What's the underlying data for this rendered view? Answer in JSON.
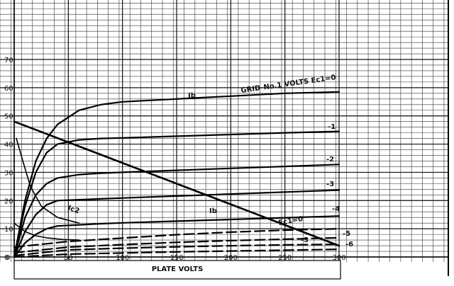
{
  "chart_data": {
    "type": "line",
    "xlabel": "PLATE VOLTS",
    "ylabel": "",
    "xlim": [
      0,
      300
    ],
    "ylim": [
      0,
      70
    ],
    "x_ticks": [
      0,
      50,
      100,
      150,
      200,
      250,
      300
    ],
    "y_ticks": [
      0,
      10,
      20,
      30,
      40,
      50,
      60,
      70
    ],
    "grid": true,
    "annotations": {
      "grid_header": "GRID-No.1 VOLTS Ec1=0",
      "ib_label": "Ib",
      "ic2_label": "Ic2",
      "ec1_lower": "Ec1=0"
    },
    "series": [
      {
        "name": "0",
        "x": [
          0,
          10,
          20,
          30,
          40,
          60,
          80,
          100,
          150,
          200,
          250,
          300
        ],
        "y": [
          0,
          20,
          34,
          42,
          47,
          52,
          54,
          55,
          56,
          57,
          58,
          58.5
        ]
      },
      {
        "name": "-1",
        "x": [
          0,
          10,
          20,
          30,
          40,
          60,
          80,
          100,
          150,
          200,
          250,
          300
        ],
        "y": [
          0,
          18,
          30,
          37,
          40,
          41.5,
          42,
          42.2,
          42.8,
          43.4,
          44,
          44.5
        ]
      },
      {
        "name": "-2",
        "x": [
          0,
          10,
          20,
          30,
          40,
          60,
          80,
          100,
          150,
          200,
          250,
          300
        ],
        "y": [
          0,
          14,
          22,
          26,
          28,
          29.2,
          29.7,
          30,
          30.7,
          31.4,
          32.1,
          32.8
        ]
      },
      {
        "name": "-3",
        "x": [
          0,
          10,
          20,
          30,
          40,
          60,
          80,
          100,
          150,
          200,
          250,
          300
        ],
        "y": [
          0,
          9,
          15,
          18.5,
          20,
          20.3,
          20.6,
          20.9,
          21.6,
          22.3,
          23,
          23.7
        ]
      },
      {
        "name": "-4",
        "x": [
          0,
          10,
          20,
          30,
          40,
          60,
          80,
          100,
          150,
          200,
          250,
          300
        ],
        "y": [
          0,
          5,
          8,
          10,
          11,
          11.4,
          11.8,
          12.1,
          12.7,
          13.3,
          13.9,
          14.5
        ]
      },
      {
        "name": "Ec1=0",
        "x": [
          0,
          50,
          100,
          150,
          200,
          250,
          300
        ],
        "y": [
          3.5,
          5.5,
          6.7,
          7.9,
          8.8,
          9.5,
          10
        ]
      },
      {
        "name": "-5",
        "x": [
          0,
          50,
          100,
          150,
          200,
          250,
          300
        ],
        "y": [
          1.5,
          3.5,
          4.4,
          5.2,
          5.8,
          6.3,
          6.8
        ]
      },
      {
        "name": "-3",
        "x": [
          0,
          50,
          100,
          150,
          200,
          250,
          300
        ],
        "y": [
          0.5,
          2.5,
          3.1,
          3.6,
          4,
          4.3,
          4.5
        ]
      },
      {
        "name": "-6",
        "x": [
          0,
          50,
          100,
          150,
          200,
          250,
          300
        ],
        "y": [
          0,
          1,
          1.4,
          1.8,
          2.1,
          2.4,
          2.7
        ]
      },
      {
        "name": "Ic2",
        "x": [
          2,
          8,
          15,
          25,
          40,
          60
        ],
        "y": [
          42,
          34,
          25,
          18,
          14,
          12
        ]
      },
      {
        "name": "Ic2 (0)",
        "x": [
          0,
          10,
          20,
          30,
          45,
          60
        ],
        "y": [
          12,
          9,
          7.5,
          6.8,
          6.2,
          6
        ]
      },
      {
        "name": "load line",
        "x": [
          0,
          300
        ],
        "y": [
          48,
          4
        ]
      }
    ]
  }
}
